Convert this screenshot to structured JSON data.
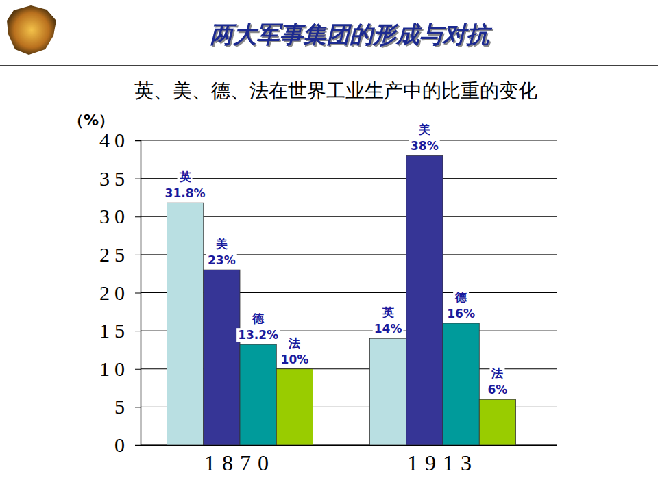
{
  "chart_data": {
    "type": "bar",
    "title": "两大军事集团的形成与对抗",
    "subtitle": "英、美、德、法在世界工业生产中的比重的变化",
    "y_label": "（%）",
    "categories": [
      "1870",
      "1913"
    ],
    "series": [
      {
        "name": "英",
        "color": "#b9dfe2",
        "values": [
          31.8,
          14
        ],
        "value_labels": [
          "31.8%",
          "14%"
        ]
      },
      {
        "name": "美",
        "color": "#363596",
        "values": [
          23,
          38
        ],
        "value_labels": [
          "23%",
          "38%"
        ]
      },
      {
        "name": "德",
        "color": "#009b9b",
        "values": [
          13.2,
          16
        ],
        "value_labels": [
          "13.2%",
          "16%"
        ]
      },
      {
        "name": "法",
        "color": "#99cc00",
        "values": [
          10,
          6
        ],
        "value_labels": [
          "10%",
          "6%"
        ]
      }
    ],
    "ylim": [
      0,
      40
    ],
    "yticks": [
      0,
      5,
      10,
      15,
      20,
      25,
      30,
      35,
      40
    ],
    "grid": true,
    "data_labels": true
  }
}
